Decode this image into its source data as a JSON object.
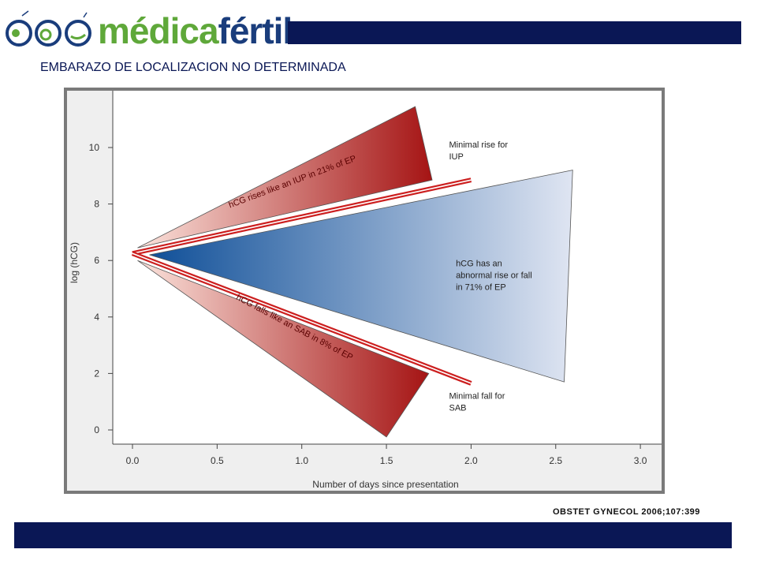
{
  "header": {
    "logo_text_a": "médica",
    "logo_text_b": "fértil",
    "brand_green": "#5fa83a",
    "brand_blue": "#1a3d7c",
    "bar_color": "#0a1755"
  },
  "subtitle": "EMBARAZO DE LOCALIZACION NO DETERMINADA",
  "citation": "OBSTET GYNECOL 2006;107:399",
  "chart_data": {
    "type": "area",
    "xlabel": "Number of days since presentation",
    "ylabel": "log (hCG)",
    "xlim": [
      0.0,
      3.0
    ],
    "ylim": [
      0,
      10
    ],
    "x_ticks": [
      "0.0",
      "0.5",
      "1.0",
      "1.5",
      "2.0",
      "2.5",
      "3.0"
    ],
    "y_ticks": [
      "0",
      "2",
      "4",
      "6",
      "8",
      "10"
    ],
    "grid": false,
    "regions": [
      {
        "name": "rise",
        "label": "hCG rises like an IUP in 21% of EP",
        "color": "#b01e1e",
        "points": [
          [
            0.03,
            6.45
          ],
          [
            1.67,
            11.45
          ],
          [
            1.77,
            8.85
          ]
        ]
      },
      {
        "name": "abnormal",
        "label": "hCG has an abnormal rise or fall in 71% of EP",
        "color": "#1f5fa8",
        "points": [
          [
            0.1,
            6.2
          ],
          [
            2.6,
            9.2
          ],
          [
            2.55,
            1.7
          ]
        ]
      },
      {
        "name": "fall",
        "label": "hCG falls like an SAB in 8% of EP",
        "color": "#b01e1e",
        "points": [
          [
            0.03,
            6.0
          ],
          [
            1.75,
            2.0
          ],
          [
            1.5,
            -0.25
          ]
        ]
      }
    ],
    "lines": [
      {
        "name": "Minimal rise for IUP",
        "color": "#cc1f1f",
        "points": [
          [
            0.0,
            6.25
          ],
          [
            2.0,
            8.85
          ]
        ]
      },
      {
        "name": "Minimal fall for SAB",
        "color": "#cc1f1f",
        "points": [
          [
            0.0,
            6.25
          ],
          [
            2.0,
            1.65
          ]
        ]
      }
    ],
    "annotations": [
      {
        "text": [
          "Minimal rise for",
          "IUP"
        ],
        "x": 1.87,
        "y": 10.0
      },
      {
        "text": [
          "hCG has an",
          "abnormal rise or fall",
          "in 71% of EP"
        ],
        "x": 1.91,
        "y": 5.8
      },
      {
        "text": [
          "Minimal fall for",
          "SAB"
        ],
        "x": 1.87,
        "y": 1.1
      }
    ]
  }
}
